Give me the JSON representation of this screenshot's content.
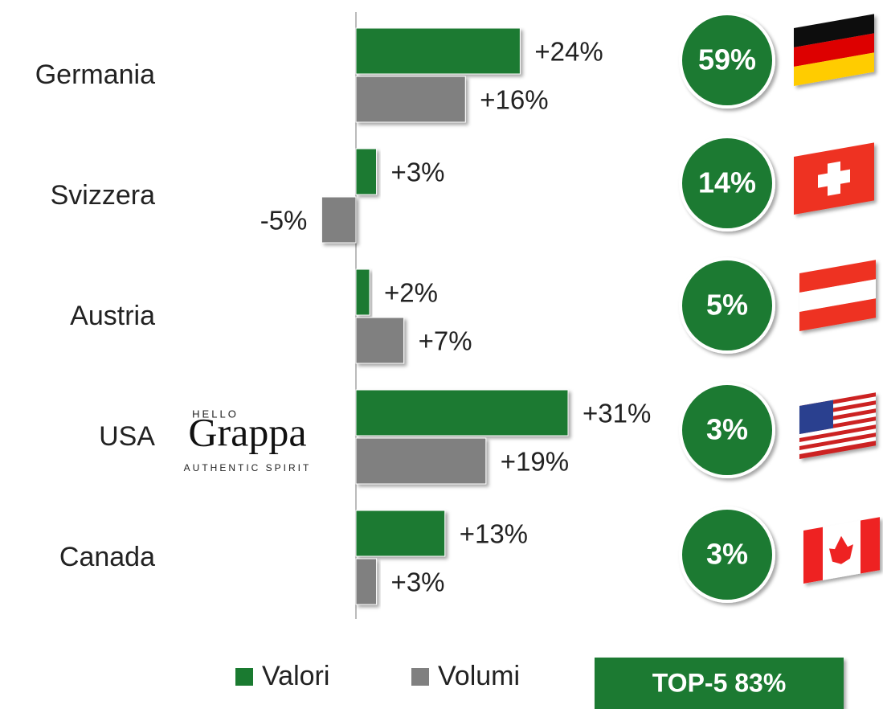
{
  "chart_data": {
    "type": "bar",
    "orientation": "horizontal",
    "categories": [
      "Germania",
      "Svizzera",
      "Austria",
      "USA",
      "Canada"
    ],
    "series": [
      {
        "name": "Valori",
        "color": "#1a7a30",
        "values": [
          24,
          3,
          2,
          31,
          13
        ],
        "value_labels": [
          "+24%",
          "+3%",
          "+2%",
          "+31%",
          "+13%"
        ]
      },
      {
        "name": "Volumi",
        "color": "#808080",
        "values": [
          16,
          -5,
          7,
          19,
          3
        ],
        "value_labels": [
          "+16%",
          "-5%",
          "+7%",
          "+19%",
          "+3%"
        ]
      }
    ],
    "shares": {
      "color": "#1a7a30",
      "values": [
        59,
        14,
        5,
        3,
        3
      ],
      "value_labels": [
        "59%",
        "14%",
        "5%",
        "3%",
        "3%"
      ]
    },
    "total": "TOP-5 83%",
    "logo": {
      "top": "HELLO",
      "name": "Grappa",
      "tagline": "AUTHENTIC SPIRIT"
    }
  }
}
